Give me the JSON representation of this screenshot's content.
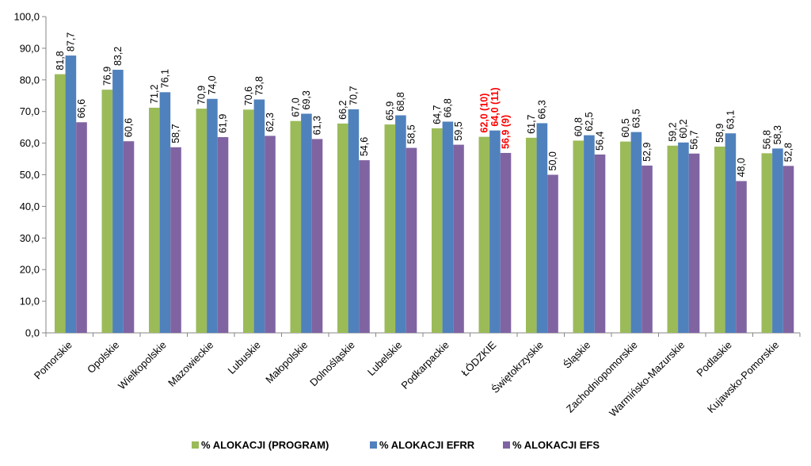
{
  "chart_data": {
    "type": "bar",
    "title": "",
    "xlabel": "",
    "ylabel": "",
    "ylim": [
      0,
      100
    ],
    "yticks": [
      "0,0",
      "10,0",
      "20,0",
      "30,0",
      "40,0",
      "50,0",
      "60,0",
      "70,0",
      "80,0",
      "90,0",
      "100,0"
    ],
    "grid": false,
    "legend_position": "bottom",
    "categories": [
      "Pomorskie",
      "Opolskie",
      "Wielkopolskie",
      "Mazowieckie",
      "Lubuskie",
      "Małopolskie",
      "Dolnośląskie",
      "Lubelskie",
      "Podkarpackie",
      "ŁÓDZKIE",
      "Świętokrzyskie",
      "Śląskie",
      "Zachodniopomorskie",
      "Warmińsko-Mazurskie",
      "Podlaskie",
      "Kujawsko-Pomorskie"
    ],
    "highlight_category": "ŁÓDZKIE",
    "highlight_color": "#ff0000",
    "series": [
      {
        "name": "% ALOKACJI (PROGRAM)",
        "color": "#9bbb59",
        "values": [
          81.8,
          76.9,
          71.2,
          70.9,
          70.6,
          67.0,
          66.2,
          65.9,
          64.7,
          62.0,
          61.7,
          60.8,
          60.5,
          59.2,
          58.9,
          56.8
        ],
        "labels": [
          "81,8",
          "76,9",
          "71,2",
          "70,9",
          "70,6",
          "67,0",
          "66,2",
          "65,9",
          "64,7",
          "62,0 (10)",
          "61,7",
          "60,8",
          "60,5",
          "59,2",
          "58,9",
          "56,8"
        ]
      },
      {
        "name": "% ALOKACJI EFRR",
        "color": "#4f81bd",
        "values": [
          87.7,
          83.2,
          76.1,
          74.0,
          73.8,
          69.3,
          70.7,
          68.8,
          66.8,
          64.0,
          66.3,
          62.5,
          63.5,
          60.2,
          63.1,
          58.3
        ],
        "labels": [
          "87,7",
          "83,2",
          "76,1",
          "74,0",
          "73,8",
          "69,3",
          "70,7",
          "68,8",
          "66,8",
          "64,0 (11)",
          "66,3",
          "62,5",
          "63,5",
          "60,2",
          "63,1",
          "58,3"
        ]
      },
      {
        "name": "% ALOKACJI EFS",
        "color": "#8064a2",
        "values": [
          66.6,
          60.6,
          58.7,
          61.9,
          62.3,
          61.3,
          54.6,
          58.5,
          59.5,
          56.9,
          50.0,
          56.4,
          52.9,
          56.7,
          48.0,
          52.8
        ],
        "labels": [
          "66,6",
          "60,6",
          "58,7",
          "61,9",
          "62,3",
          "61,3",
          "54,6",
          "58,5",
          "59,5",
          "56,9 (9)",
          "50,0",
          "56,4",
          "52,9",
          "56,7",
          "48,0",
          "52,8"
        ]
      }
    ]
  }
}
